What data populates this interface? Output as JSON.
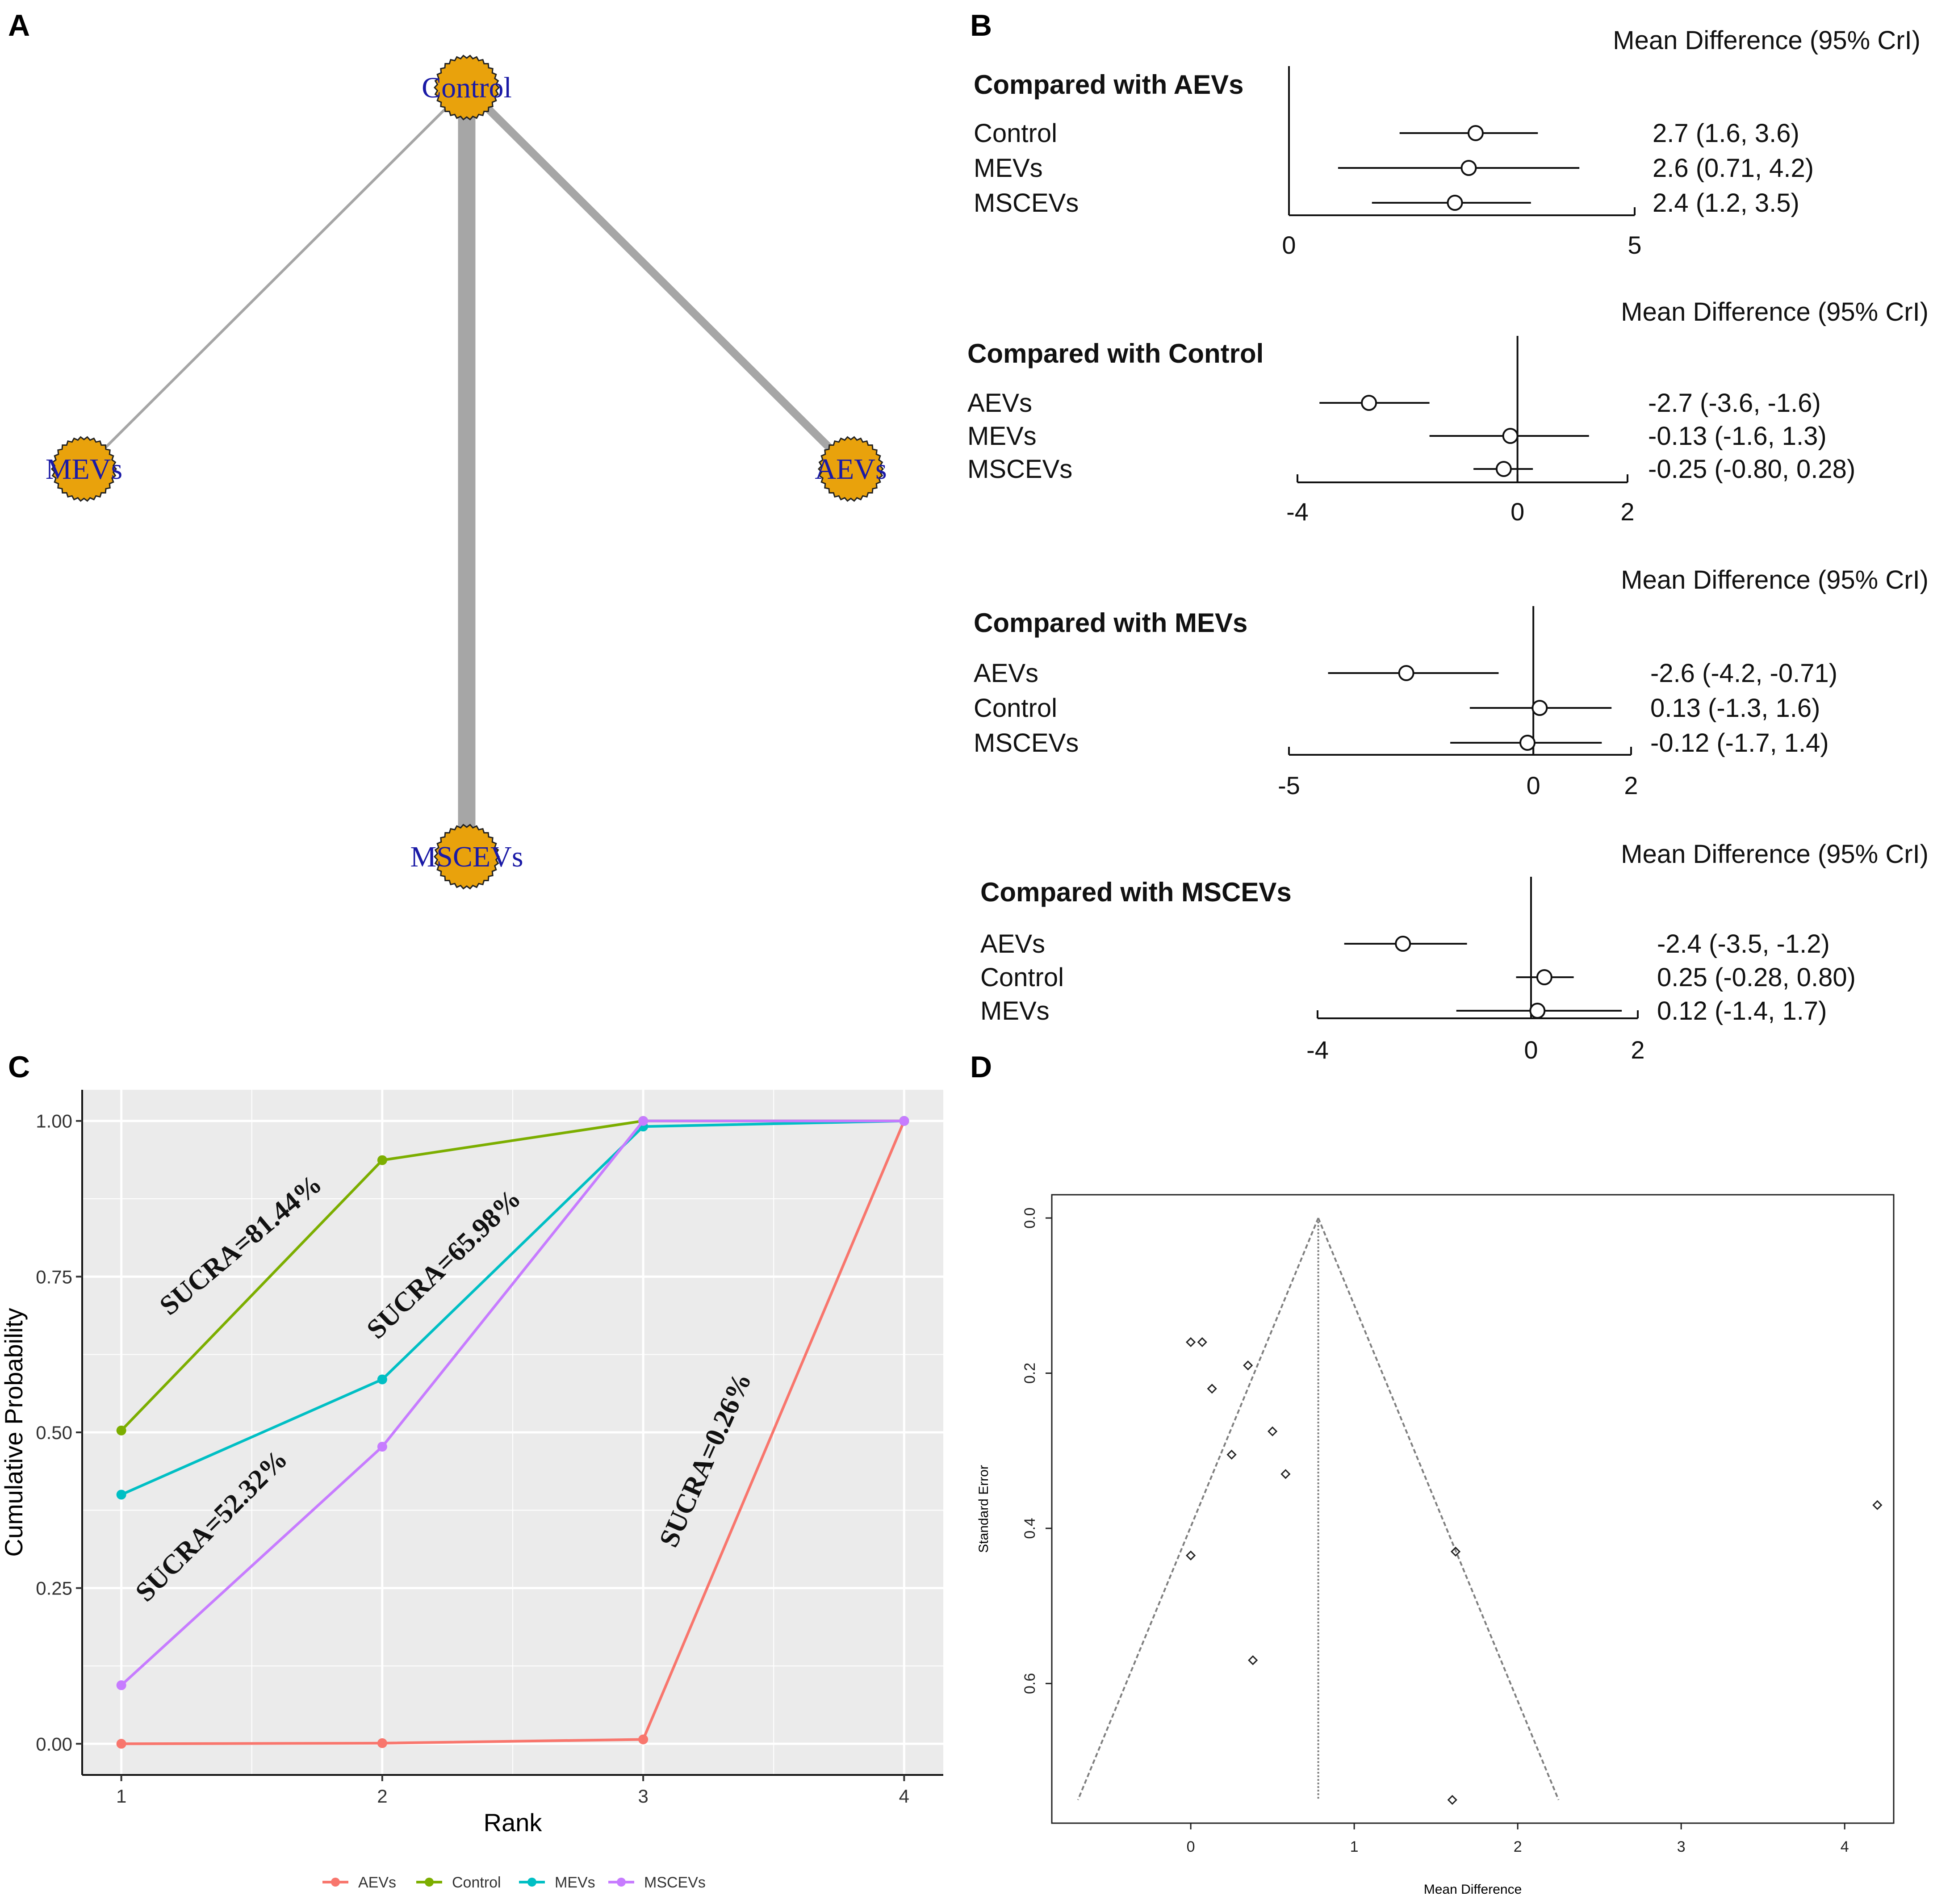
{
  "panels": {
    "a": {
      "letter": "A"
    },
    "b": {
      "letter": "B"
    },
    "c": {
      "letter": "C"
    },
    "d": {
      "letter": "D"
    }
  },
  "colors": {
    "node_fill": "#E9A20C",
    "node_label": "#1a1aa6",
    "edge": "#a6a6a6",
    "panel_bg": "#ebebeb",
    "grid": "#ffffff",
    "funnel": "#7f7f7f"
  },
  "network": {
    "nodes": [
      {
        "id": "control",
        "label": "Control"
      },
      {
        "id": "mevs",
        "label": "MEVs"
      },
      {
        "id": "aevs",
        "label": "AEVs"
      },
      {
        "id": "mscevs",
        "label": "MSCEVs"
      }
    ],
    "edges": [
      {
        "from": "control",
        "to": "mevs",
        "weight": 1
      },
      {
        "from": "control",
        "to": "aevs",
        "weight": 5
      },
      {
        "from": "control",
        "to": "mscevs",
        "weight": 12
      }
    ]
  },
  "forest": {
    "header": "Mean Difference (95% CrI)",
    "groups": [
      {
        "title": "Compared with AEVs",
        "xlim": [
          0,
          5
        ],
        "ticks": [
          "0",
          "5"
        ],
        "rows": [
          {
            "label": "Control",
            "est": 2.7,
            "lo": 1.6,
            "hi": 3.6,
            "text": "2.7 (1.6, 3.6)"
          },
          {
            "label": "MEVs",
            "est": 2.6,
            "lo": 0.71,
            "hi": 4.2,
            "text": "2.6 (0.71, 4.2)"
          },
          {
            "label": "MSCEVs",
            "est": 2.4,
            "lo": 1.2,
            "hi": 3.5,
            "text": "2.4 (1.2, 3.5)"
          }
        ]
      },
      {
        "title": "Compared with Control",
        "xlim": [
          -4,
          2
        ],
        "ticks": [
          "-4",
          "0",
          "2"
        ],
        "rows": [
          {
            "label": "AEVs",
            "est": -2.7,
            "lo": -3.6,
            "hi": -1.6,
            "text": "-2.7 (-3.6, -1.6)"
          },
          {
            "label": "MEVs",
            "est": -0.13,
            "lo": -1.6,
            "hi": 1.3,
            "text": "-0.13 (-1.6, 1.3)"
          },
          {
            "label": "MSCEVs",
            "est": -0.25,
            "lo": -0.8,
            "hi": 0.28,
            "text": "-0.25 (-0.80, 0.28)"
          }
        ]
      },
      {
        "title": "Compared with MEVs",
        "xlim": [
          -5,
          2
        ],
        "ticks": [
          "-5",
          "0",
          "2"
        ],
        "rows": [
          {
            "label": "AEVs",
            "est": -2.6,
            "lo": -4.2,
            "hi": -0.71,
            "text": "-2.6 (-4.2, -0.71)"
          },
          {
            "label": "Control",
            "est": 0.13,
            "lo": -1.3,
            "hi": 1.6,
            "text": "0.13 (-1.3, 1.6)"
          },
          {
            "label": "MSCEVs",
            "est": -0.12,
            "lo": -1.7,
            "hi": 1.4,
            "text": "-0.12 (-1.7, 1.4)"
          }
        ]
      },
      {
        "title": "Compared with MSCEVs",
        "xlim": [
          -4,
          2
        ],
        "ticks": [
          "-4",
          "0",
          "2"
        ],
        "rows": [
          {
            "label": "AEVs",
            "est": -2.4,
            "lo": -3.5,
            "hi": -1.2,
            "text": "-2.4 (-3.5, -1.2)"
          },
          {
            "label": "Control",
            "est": 0.25,
            "lo": -0.28,
            "hi": 0.8,
            "text": "0.25 (-0.28, 0.80)"
          },
          {
            "label": "MEVs",
            "est": 0.12,
            "lo": -1.4,
            "hi": 1.7,
            "text": "0.12 (-1.4, 1.7)"
          }
        ]
      }
    ]
  },
  "chart_data": [
    {
      "type": "line",
      "title": "",
      "xlabel": "Rank",
      "ylabel": "Cumulative Probability",
      "x": [
        1,
        2,
        3,
        4
      ],
      "xlim": [
        0.85,
        4.15
      ],
      "ylim": [
        -0.05,
        1.05
      ],
      "xticks": [
        "1",
        "2",
        "3",
        "4"
      ],
      "yticks": [
        "0.00",
        "0.25",
        "0.50",
        "0.75",
        "1.00"
      ],
      "grid": true,
      "legend_position": "bottom",
      "series": [
        {
          "name": "AEVs",
          "color": "#F8766D",
          "values": [
            0.0,
            0.001,
            0.007,
            1.0
          ]
        },
        {
          "name": "Control",
          "color": "#7CAE00",
          "values": [
            0.503,
            0.937,
            1.0,
            1.0
          ]
        },
        {
          "name": "MEVs",
          "color": "#00BFC4",
          "values": [
            0.4,
            0.585,
            0.991,
            1.0
          ]
        },
        {
          "name": "MSCEVs",
          "color": "#C77CFF",
          "values": [
            0.094,
            0.477,
            1.0,
            1.0
          ]
        }
      ],
      "annotations": [
        {
          "text": "SUCRA=81.44%",
          "x": 1.48,
          "y": 0.79
        },
        {
          "text": "SUCRA=65.98%",
          "x": 2.26,
          "y": 0.76
        },
        {
          "text": "SUCRA=52.32%",
          "x": 1.37,
          "y": 0.34
        },
        {
          "text": "SUCRA=0.26%",
          "x": 3.27,
          "y": 0.45
        }
      ]
    },
    {
      "type": "scatter",
      "title": "",
      "xlabel": "Mean Difference",
      "ylabel": "Standard Error",
      "xlim": [
        -0.85,
        4.3
      ],
      "ylim": [
        0.78,
        -0.03
      ],
      "xticks": [
        "0",
        "1",
        "2",
        "3",
        "4"
      ],
      "yticks": [
        "0.0",
        "0.2",
        "0.4",
        "0.6"
      ],
      "pooled_estimate": 0.78,
      "funnel_se_max": 0.75,
      "points": [
        {
          "x": 0.0,
          "y": 0.16
        },
        {
          "x": 0.07,
          "y": 0.16
        },
        {
          "x": 0.13,
          "y": 0.22
        },
        {
          "x": 0.35,
          "y": 0.19
        },
        {
          "x": 0.5,
          "y": 0.275
        },
        {
          "x": 0.25,
          "y": 0.305
        },
        {
          "x": 0.58,
          "y": 0.33
        },
        {
          "x": 0.0,
          "y": 0.435
        },
        {
          "x": 0.38,
          "y": 0.57
        },
        {
          "x": 1.62,
          "y": 0.43
        },
        {
          "x": 1.6,
          "y": 0.75
        },
        {
          "x": 4.2,
          "y": 0.37
        }
      ]
    }
  ]
}
